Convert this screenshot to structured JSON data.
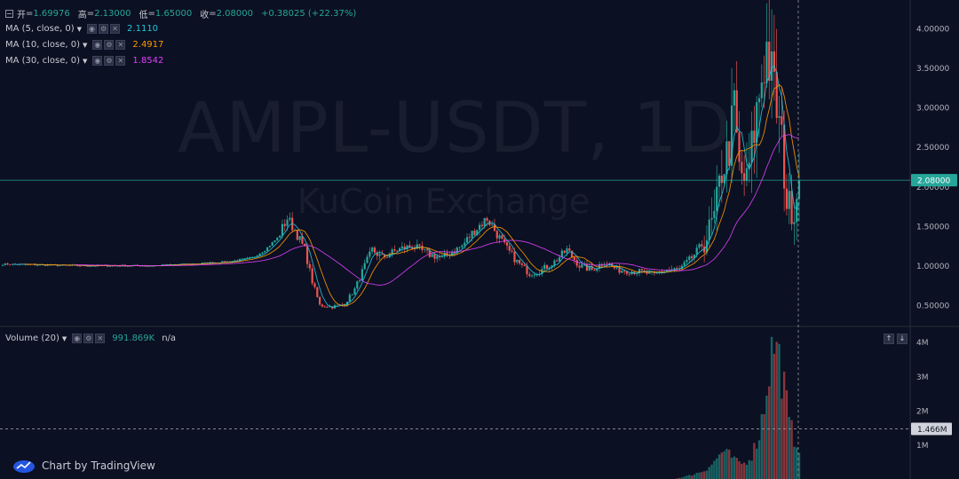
{
  "ohlc": {
    "open_label": "开",
    "open_value": "1.69976",
    "high_label": "高",
    "high_value": "2.13000",
    "low_label": "低",
    "low_value": "1.65000",
    "close_label": "收",
    "close_value": "2.08000",
    "change_text": "+0.38025 (+22.37%)"
  },
  "indicators": [
    {
      "label": "MA (5, close, 0)",
      "value": "2.1110",
      "color": "#26c6da"
    },
    {
      "label": "MA (10, close, 0)",
      "value": "2.4917",
      "color": "#ff9800"
    },
    {
      "label": "MA (30, close, 0)",
      "value": "1.8542",
      "color": "#e040fb"
    }
  ],
  "volume_legend": {
    "label": "Volume (20)",
    "value": "991.869K",
    "value2": "n/a"
  },
  "watermark": {
    "symbol": "AMPL-USDT, 1D",
    "exchange": "KuCoin Exchange"
  },
  "brand": {
    "text": "Chart by TradingView"
  },
  "chart_data": {
    "type": "candlestick",
    "symbol": "AMPL-USDT",
    "interval": "1D",
    "price_axis": {
      "ticks": [
        "4.00000",
        "3.50000",
        "3.00000",
        "2.50000",
        "2.00000",
        "1.50000",
        "1.00000",
        "0.50000"
      ],
      "range": [
        0.3,
        4.2
      ],
      "last_price_label": "2.08000",
      "last_price": 2.08
    },
    "volume_axis": {
      "ticks": [
        "4M",
        "3M",
        "2M",
        "1M"
      ],
      "range": [
        0,
        4200000
      ],
      "crosshair_label": "1.466M",
      "crosshair_value": 1466000
    },
    "price_anchors": [
      [
        0,
        1.02
      ],
      [
        30,
        1.0
      ],
      [
        60,
        1.0
      ],
      [
        75,
        1.02
      ],
      [
        90,
        1.05
      ],
      [
        100,
        1.1
      ],
      [
        105,
        1.2
      ],
      [
        110,
        1.35
      ],
      [
        114,
        1.6
      ],
      [
        117,
        1.45
      ],
      [
        121,
        1.2
      ],
      [
        124,
        0.8
      ],
      [
        127,
        0.5
      ],
      [
        132,
        0.48
      ],
      [
        137,
        0.52
      ],
      [
        141,
        0.7
      ],
      [
        145,
        1.0
      ],
      [
        148,
        1.2
      ],
      [
        152,
        1.1
      ],
      [
        158,
        1.2
      ],
      [
        164,
        1.25
      ],
      [
        170,
        1.15
      ],
      [
        176,
        1.1
      ],
      [
        184,
        1.25
      ],
      [
        189,
        1.45
      ],
      [
        194,
        1.6
      ],
      [
        197,
        1.45
      ],
      [
        201,
        1.25
      ],
      [
        206,
        1.05
      ],
      [
        211,
        0.9
      ],
      [
        216,
        0.95
      ],
      [
        221,
        1.05
      ],
      [
        226,
        1.2
      ],
      [
        231,
        1.0
      ],
      [
        236,
        0.95
      ],
      [
        241,
        1.05
      ],
      [
        246,
        0.95
      ],
      [
        256,
        0.92
      ],
      [
        261,
        0.88
      ],
      [
        266,
        0.95
      ],
      [
        271,
        0.95
      ],
      [
        276,
        1.1
      ],
      [
        281,
        1.3
      ],
      [
        285,
        1.6
      ],
      [
        288,
        2.2
      ],
      [
        291,
        2.5
      ],
      [
        293,
        3.0
      ],
      [
        295,
        2.2
      ],
      [
        298,
        2.05
      ],
      [
        301,
        2.7
      ],
      [
        304,
        3.4
      ],
      [
        306,
        3.75
      ],
      [
        309,
        3.2
      ],
      [
        312,
        2.55
      ],
      [
        314,
        1.8
      ],
      [
        317,
        1.7
      ],
      [
        319,
        2.08
      ]
    ],
    "volume_anchors": [
      [
        0,
        0
      ],
      [
        269,
        0
      ],
      [
        276,
        120000
      ],
      [
        281,
        250000
      ],
      [
        285,
        500000
      ],
      [
        288,
        800000
      ],
      [
        291,
        700000
      ],
      [
        294,
        500000
      ],
      [
        297,
        450000
      ],
      [
        300,
        700000
      ],
      [
        303,
        1300000
      ],
      [
        305,
        2200000
      ],
      [
        307,
        3300000
      ],
      [
        309,
        4050000
      ],
      [
        311,
        3500000
      ],
      [
        313,
        2700000
      ],
      [
        315,
        1600000
      ],
      [
        317,
        1200000
      ],
      [
        319,
        991869
      ]
    ],
    "moving_averages": [
      {
        "period": 5,
        "color": "#26c6da"
      },
      {
        "period": 10,
        "color": "#ff9800"
      },
      {
        "period": 30,
        "color": "#e040fb"
      }
    ],
    "candle_count": 320,
    "up_color": "#26a69a",
    "down_color": "#ef5350",
    "grid": false,
    "crosshair": true
  }
}
